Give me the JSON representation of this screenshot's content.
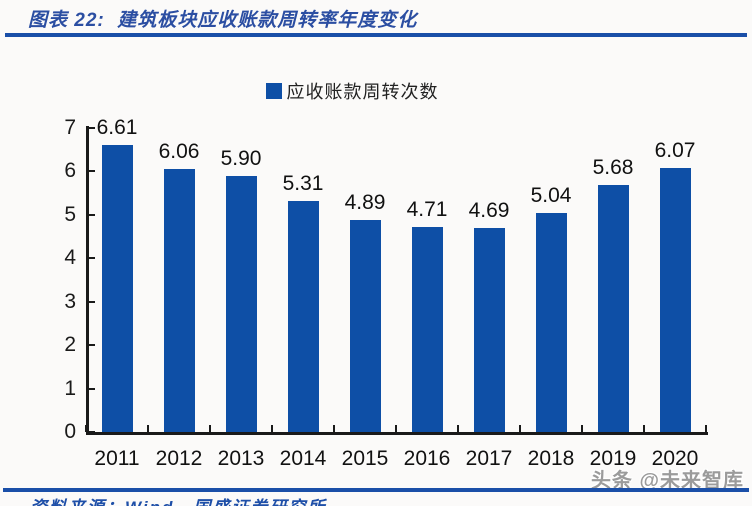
{
  "header": {
    "title": "图表 22:  建筑板块应收账款周转率年度变化"
  },
  "chart_data": {
    "type": "bar",
    "title": "建筑板块应收账款周转率年度变化",
    "legend": "应收账款周转次数",
    "legend_position": "top-center",
    "categories": [
      "2011",
      "2012",
      "2013",
      "2014",
      "2015",
      "2016",
      "2017",
      "2018",
      "2019",
      "2020"
    ],
    "values": [
      6.61,
      6.06,
      5.9,
      5.31,
      4.89,
      4.71,
      4.69,
      5.04,
      5.68,
      6.07
    ],
    "value_labels": [
      "6.61",
      "6.06",
      "5.90",
      "5.31",
      "4.89",
      "4.71",
      "4.69",
      "5.04",
      "5.68",
      "6.07"
    ],
    "xlabel": "",
    "ylabel": "",
    "ylim": [
      0,
      7
    ],
    "y_ticks": [
      0,
      1,
      2,
      3,
      4,
      5,
      6,
      7
    ],
    "grid": false,
    "bar_color": "#0E4FA6"
  },
  "footer": {
    "source_note": "资料来源：Wind，国盛证券研究所",
    "watermark": "头条 @未来智库"
  },
  "colors": {
    "bar": "#0E4FA6",
    "title_text": "#2B4EA2",
    "rule": "#1A4FA8",
    "axis": "#1A1A1A",
    "watermark": "#9B9B9B",
    "background": "#FBFAF9"
  }
}
